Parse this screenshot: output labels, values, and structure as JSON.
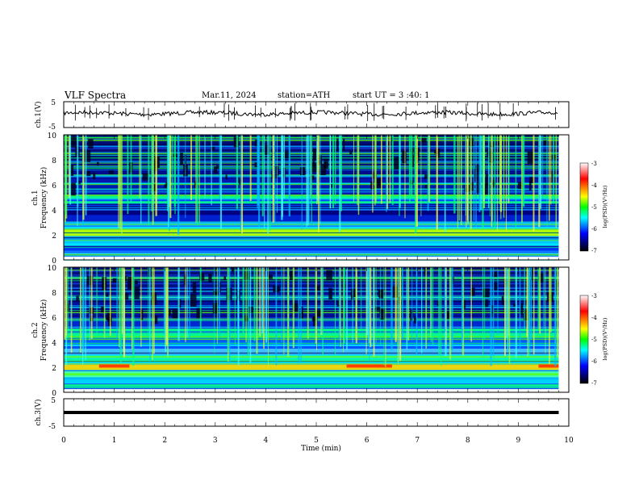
{
  "header": {
    "title": "VLF  Spectra",
    "date": "Mar.11, 2024",
    "station": "station=ATH",
    "start_ut": "start  UT  =   3  :40: 1"
  },
  "colorbar": {
    "label": "log(PSD)(V²/Hz)",
    "ticks": [
      "-3",
      "-4",
      "-5",
      "-6",
      "-7"
    ],
    "colors": [
      "#ffffff",
      "#ff0000",
      "#ffff00",
      "#00ff00",
      "#00ffff",
      "#0000ff",
      "#000000"
    ]
  },
  "chart_data": [
    {
      "type": "line",
      "panel": "ch1-waveform",
      "ylabel": "ch.1(V)",
      "ylim": [
        -5,
        5
      ],
      "ytick_labels": [
        "5",
        "-5"
      ],
      "xlim": [
        0,
        10
      ],
      "trace_level": 0.5,
      "trace_end": 9.8,
      "color": "#000000"
    },
    {
      "type": "heatmap",
      "panel": "ch1-spectrogram",
      "ylabel": "ch.1\nFrequency  (kHz)",
      "ylim": [
        0,
        10
      ],
      "ytick_labels": [
        "0",
        "2",
        "4",
        "6",
        "8",
        "10"
      ],
      "xlim": [
        0,
        10
      ],
      "data_end": 9.8,
      "strong_bands_khz": [
        2.0,
        2.3,
        4.6,
        5.0
      ],
      "colorbar": "log(PSD)(V²/Hz)",
      "crange": [
        -7,
        -3
      ]
    },
    {
      "type": "heatmap",
      "panel": "ch2-spectrogram",
      "ylabel": "ch.2\nFrequency  (kHz)",
      "ylim": [
        0,
        10
      ],
      "ytick_labels": [
        "0",
        "2",
        "4",
        "6",
        "8",
        "10"
      ],
      "xlim": [
        0,
        10
      ],
      "data_end": 9.8,
      "strong_bands_khz": [
        1.9,
        2.1,
        4.6,
        5.0
      ],
      "colorbar": "log(PSD)(V²/Hz)",
      "crange": [
        -7,
        -3
      ]
    },
    {
      "type": "line",
      "panel": "ch3-waveform",
      "ylabel": "ch.3(V)",
      "ylim": [
        -5,
        5
      ],
      "ytick_labels": [
        "5",
        "-5"
      ],
      "xlim": [
        0,
        10
      ],
      "trace_level": 0.0,
      "trace_end": 9.8,
      "color": "#000000",
      "xlabel": "Time  (min)",
      "xtick_labels": [
        "0",
        "1",
        "2",
        "3",
        "4",
        "5",
        "6",
        "7",
        "8",
        "9",
        "10"
      ]
    }
  ]
}
